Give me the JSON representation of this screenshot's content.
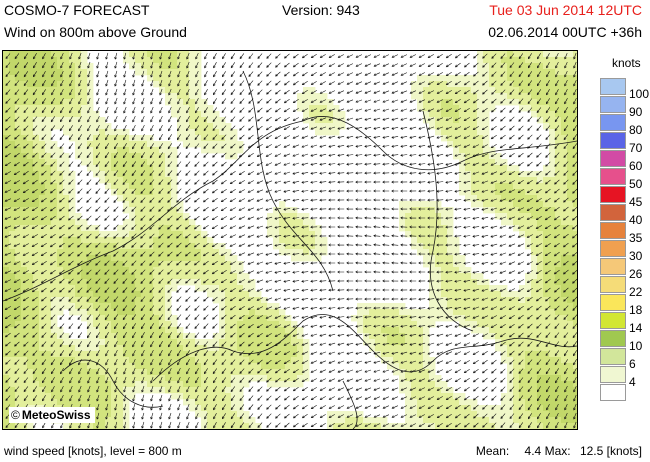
{
  "header": {
    "product": "COSMO-7 FORECAST",
    "field": "Wind on 800m above Ground",
    "version": "Version: 943",
    "valid_time": "Tue 03 Jun 2014 12UTC",
    "run_info": "02.06.2014 00UTC +36h"
  },
  "map": {
    "credit": "MeteoSwiss",
    "credit_symbol": "©",
    "colors": {
      "white": "#ffffff",
      "light": "#f0f7c8",
      "pale": "#e3ef9c",
      "mid": "#d2e47e",
      "strong": "#c2d86a",
      "arrow": "#111111",
      "border": "#1a1a1a"
    }
  },
  "legend": {
    "title": "knots",
    "levels": [
      {
        "label": "100",
        "color": "#a8c8f0"
      },
      {
        "label": "90",
        "color": "#96b4f0"
      },
      {
        "label": "80",
        "color": "#7896f0"
      },
      {
        "label": "70",
        "color": "#5a64e6"
      },
      {
        "label": "60",
        "color": "#d24ba5"
      },
      {
        "label": "50",
        "color": "#e6508c"
      },
      {
        "label": "45",
        "color": "#e61423"
      },
      {
        "label": "40",
        "color": "#d2643c"
      },
      {
        "label": "35",
        "color": "#e6823c"
      },
      {
        "label": "30",
        "color": "#f0a050"
      },
      {
        "label": "26",
        "color": "#f5c878"
      },
      {
        "label": "22",
        "color": "#f5dc78"
      },
      {
        "label": "18",
        "color": "#fae65a"
      },
      {
        "label": "14",
        "color": "#d2e632"
      },
      {
        "label": "10",
        "color": "#a0c850"
      },
      {
        "label": "6",
        "color": "#d2e69b"
      },
      {
        "label": "4",
        "color": "#f0f7d2"
      },
      {
        "label": "",
        "color": "#ffffff"
      }
    ]
  },
  "footer": {
    "left": "wind speed [knots], level = 800 m",
    "mean_label": "Mean:",
    "mean_value": "4.4",
    "max_label": "Max:",
    "max_value": "12.5",
    "unit": "[knots]"
  }
}
